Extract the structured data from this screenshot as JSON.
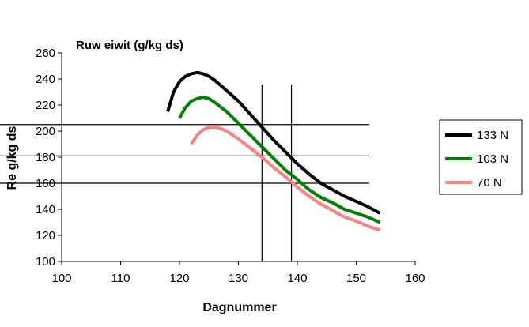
{
  "chart_data": {
    "type": "line",
    "title": "Ruw eiwit (g/kg ds)",
    "xlabel": "Dagnummer",
    "ylabel": "Re g/kg ds",
    "xlim": [
      100,
      160
    ],
    "ylim": [
      100,
      260
    ],
    "x_ticks": [
      100,
      110,
      120,
      130,
      140,
      150,
      160
    ],
    "y_ticks": [
      100,
      120,
      140,
      160,
      180,
      200,
      220,
      240,
      260
    ],
    "grid": false,
    "legend_position": "right",
    "reference_lines": {
      "horizontal": [
        205,
        181,
        160
      ],
      "vertical": [
        134,
        139
      ]
    },
    "series": [
      {
        "name": "133 N",
        "color": "#000000",
        "x": [
          118,
          119,
          120,
          121,
          122,
          123,
          124,
          125,
          126,
          128,
          130,
          132,
          134,
          136,
          138,
          140,
          142,
          144,
          146,
          148,
          150,
          152,
          154
        ],
        "y": [
          215,
          230,
          238,
          242,
          244,
          245,
          244,
          242,
          239,
          231,
          223,
          213,
          203,
          193,
          184,
          175,
          167,
          160,
          155,
          150,
          146,
          142,
          137
        ]
      },
      {
        "name": "103 N",
        "color": "#008000",
        "x": [
          120,
          121,
          122,
          123,
          124,
          125,
          126,
          128,
          130,
          132,
          134,
          136,
          138,
          140,
          142,
          144,
          146,
          148,
          150,
          152,
          154
        ],
        "y": [
          210,
          218,
          223,
          225,
          226,
          225,
          222,
          215,
          206,
          197,
          188,
          179,
          170,
          163,
          155,
          149,
          145,
          140,
          137,
          134,
          130
        ]
      },
      {
        "name": "70 N",
        "color": "#FF8080",
        "x": [
          122,
          123,
          124,
          125,
          126,
          127,
          128,
          130,
          132,
          134,
          136,
          138,
          140,
          142,
          144,
          146,
          148,
          150,
          152,
          154
        ],
        "y": [
          190,
          197,
          201,
          203,
          203,
          202,
          200,
          194,
          187,
          180,
          172,
          165,
          157,
          150,
          144,
          139,
          134,
          131,
          127,
          124
        ]
      }
    ]
  }
}
